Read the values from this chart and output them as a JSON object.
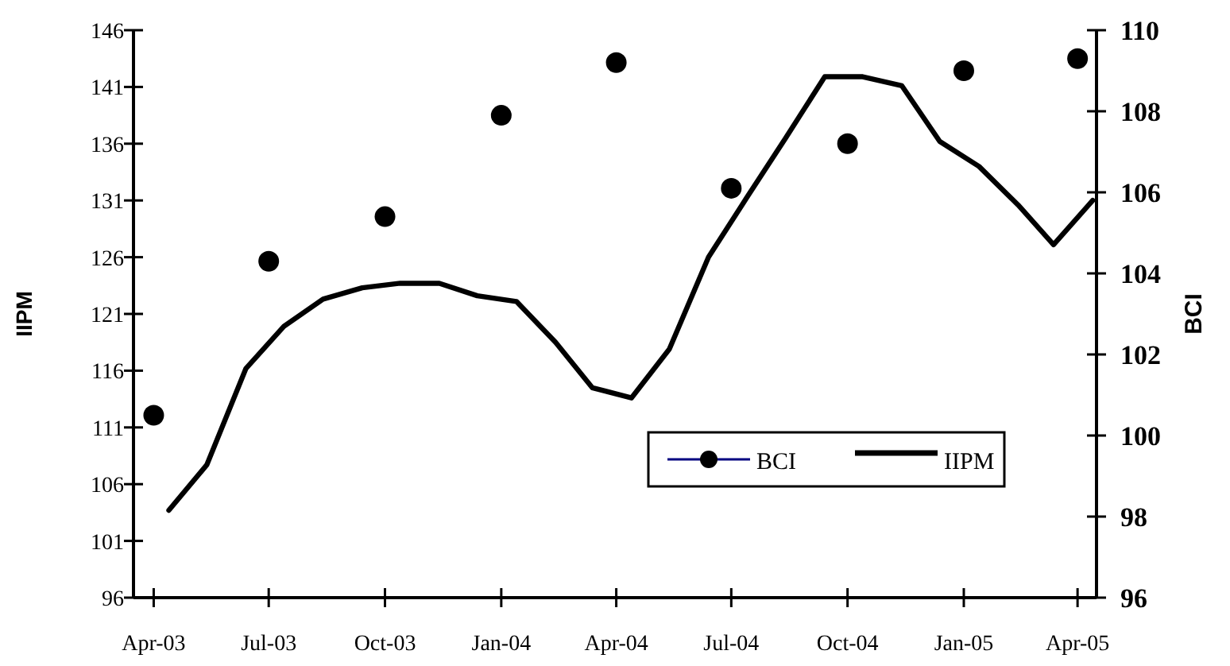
{
  "chart_data": {
    "type": "line",
    "ylabel": "IIPM",
    "y2label": "BCI",
    "xlim": [
      "2003-03-16",
      "2005-04-16"
    ],
    "xticks": [
      {
        "value": "2003-04",
        "label": "Apr-03"
      },
      {
        "value": "2003-07",
        "label": "Jul-03"
      },
      {
        "value": "2003-10",
        "label": "Oct-03"
      },
      {
        "value": "2004-01",
        "label": "Jan-04"
      },
      {
        "value": "2004-04",
        "label": "Apr-04"
      },
      {
        "value": "2004-07",
        "label": "Jul-04"
      },
      {
        "value": "2004-10",
        "label": "Oct-04"
      },
      {
        "value": "2005-01",
        "label": "Jan-05"
      },
      {
        "value": "2005-04",
        "label": "Apr-05"
      }
    ],
    "ylim": [
      96,
      146
    ],
    "yticks": [
      96,
      101,
      106,
      111,
      116,
      121,
      126,
      131,
      136,
      141,
      146
    ],
    "y2lim": [
      96,
      110
    ],
    "y2ticks": [
      96,
      98,
      100,
      102,
      104,
      106,
      108,
      110
    ],
    "legend": "bottom right",
    "grid": false,
    "series": [
      {
        "name": "BCI",
        "type": "scatter",
        "axis": "y2",
        "marker": "circle",
        "color": "#000000",
        "x": [
          "2003-04",
          "2003-07",
          "2003-10",
          "2004-01",
          "2004-04",
          "2004-07",
          "2004-10",
          "2005-01",
          "2005-04"
        ],
        "values": [
          100.5,
          104.3,
          105.4,
          107.9,
          109.2,
          106.1,
          107.2,
          109.0,
          109.3
        ]
      },
      {
        "name": "IIPM",
        "marker": "none",
        "line_style": "solid",
        "color": "#000000",
        "x": [
          "2003-04-13",
          "2003-05-13",
          "2003-06-13",
          "2003-07-13",
          "2003-08-13",
          "2003-09-13",
          "2003-10-13",
          "2003-11-13",
          "2003-12-13",
          "2004-01-13",
          "2004-02-13",
          "2004-03-13",
          "2004-04-13",
          "2004-05-13",
          "2004-06-13",
          "2004-07-13",
          "2004-08-13",
          "2004-09-13",
          "2004-10-13",
          "2004-11-13",
          "2004-12-13",
          "2005-01-13",
          "2005-02-13",
          "2005-03-13",
          "2005-04-13"
        ],
        "values": [
          103.7,
          107.7,
          116.2,
          119.9,
          122.3,
          123.3,
          123.7,
          123.7,
          122.6,
          122.1,
          118.5,
          114.5,
          113.6,
          117.9,
          126.0,
          131.2,
          136.5,
          141.9,
          141.9,
          141.1,
          136.2,
          134.0,
          130.6,
          127.1,
          131.0
        ]
      }
    ]
  }
}
